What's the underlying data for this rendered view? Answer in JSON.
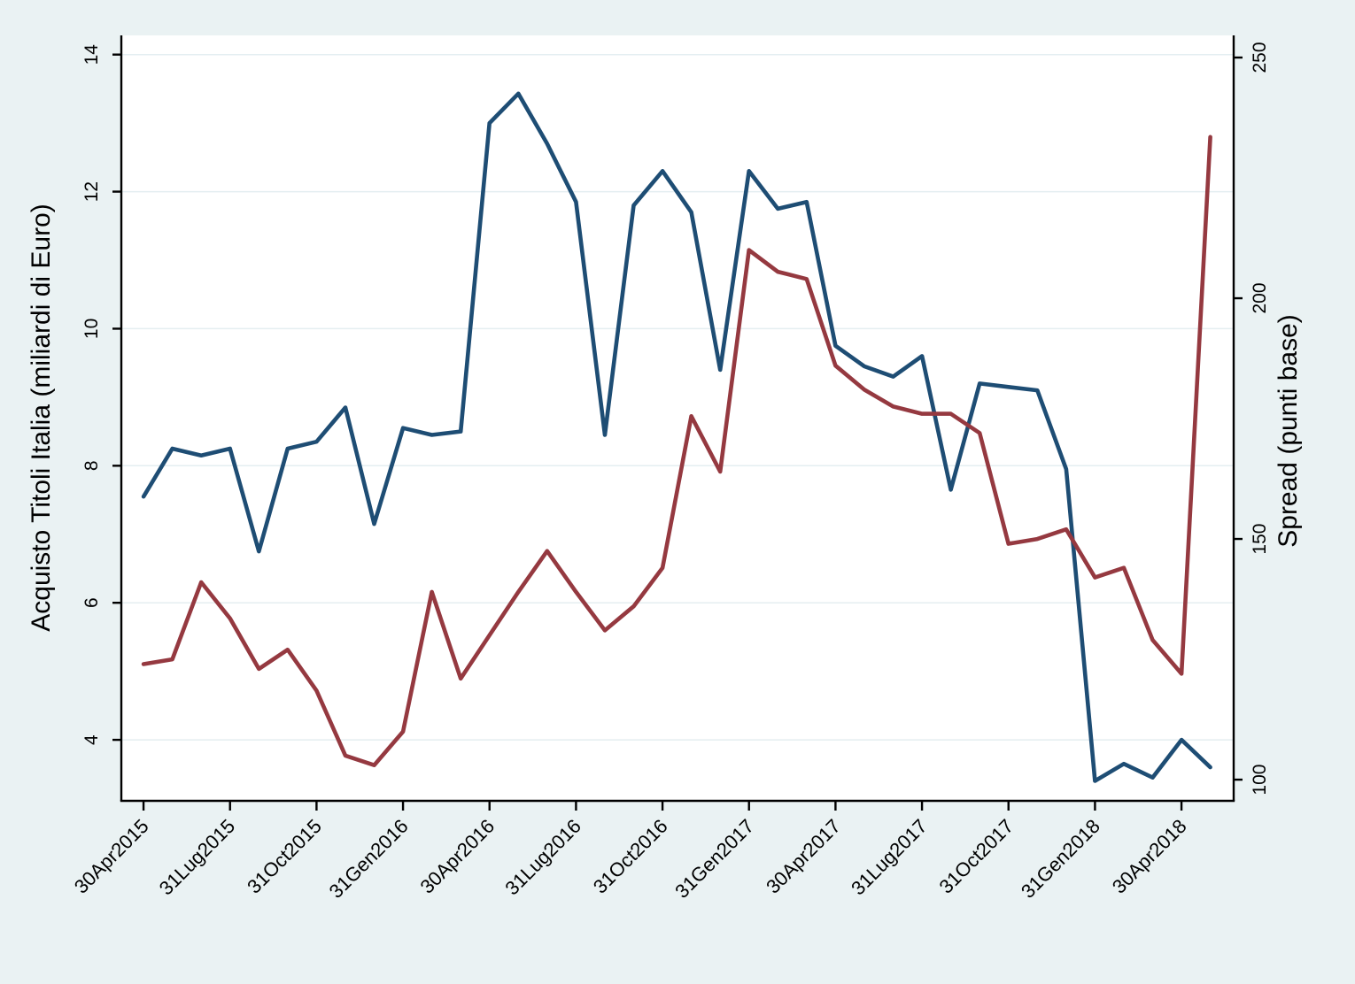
{
  "chart_data": {
    "type": "line",
    "title": "",
    "legend": "none",
    "grid": {
      "show": true,
      "orientation": "horizontal",
      "at_left_ticks": true,
      "color": "#E4EEF1"
    },
    "colors": {
      "background": "#EAF2F3",
      "plot_background": "#FFFFFF",
      "axis": "#000000",
      "series_left": "#1E4D74",
      "series_right": "#953940"
    },
    "x": {
      "categories": [
        "apr2015",
        "mag2015",
        "giu2015",
        "lug2015",
        "ago2015",
        "set2015",
        "ott2015",
        "nov2015",
        "dic2015",
        "gen2016",
        "feb2016",
        "mar2016",
        "apr2016",
        "mag2016",
        "giu2016",
        "lug2016",
        "ago2016",
        "set2016",
        "ott2016",
        "nov2016",
        "dic2016",
        "gen2017",
        "feb2017",
        "mar2017",
        "apr2017",
        "mag2017",
        "giu2017",
        "lug2017",
        "ago2017",
        "set2017",
        "ott2017",
        "nov2017",
        "dic2017",
        "gen2018",
        "feb2018",
        "mar2018",
        "apr2018",
        "mag2018"
      ],
      "tick_indices": [
        0,
        3,
        6,
        9,
        12,
        15,
        18,
        21,
        24,
        27,
        30,
        33,
        36
      ],
      "tick_labels": [
        "30Apr2015",
        "31Lug2015",
        "31Oct2015",
        "31Gen2016",
        "30Apr2016",
        "31Lug2016",
        "31Oct2016",
        "31Gen2017",
        "30Apr2017",
        "31Lug2017",
        "31Oct2017",
        "31Gen2018",
        "30Apr2018"
      ],
      "range_idx": [
        -0.77,
        37.81
      ]
    },
    "left_axis": {
      "title": "Acquisto Titoli Italia (miliardi di Euro)",
      "ticks": [
        4,
        6,
        8,
        10,
        12,
        14
      ],
      "tick_labels": [
        "4",
        "6",
        "8",
        "10",
        "12",
        "14"
      ],
      "range": [
        3.11,
        14.28
      ]
    },
    "right_axis": {
      "title": "Spread (punti base)",
      "ticks": [
        100,
        150,
        200,
        250
      ],
      "tick_labels": [
        "100",
        "150",
        "200",
        "250"
      ],
      "range": [
        95.6,
        254.6
      ]
    },
    "series": [
      {
        "name": "Acquisto Titoli Italia (miliardi di Euro)",
        "axis": "left",
        "color": "#1E4D74",
        "values": [
          7.55,
          8.25,
          8.15,
          8.25,
          6.75,
          8.25,
          8.35,
          8.85,
          7.15,
          8.55,
          8.45,
          8.5,
          13.0,
          13.43,
          12.7,
          11.85,
          8.45,
          11.8,
          12.3,
          11.7,
          9.4,
          12.3,
          11.75,
          11.85,
          9.75,
          9.45,
          9.3,
          9.6,
          7.65,
          9.2,
          9.15,
          9.1,
          7.95,
          3.4,
          3.65,
          3.45,
          4.0,
          3.6
        ]
      },
      {
        "name": "Spread (punti base)",
        "axis": "right",
        "color": "#953940",
        "values": [
          124,
          125,
          141,
          133.5,
          123,
          127,
          118.5,
          105,
          103,
          110,
          139,
          121,
          130,
          139,
          147.5,
          139,
          131,
          136,
          144,
          175.5,
          164,
          210,
          205.5,
          204,
          186,
          181,
          177.5,
          176,
          176,
          172,
          149,
          150,
          152,
          142,
          144,
          129,
          122,
          233.5
        ]
      }
    ]
  }
}
